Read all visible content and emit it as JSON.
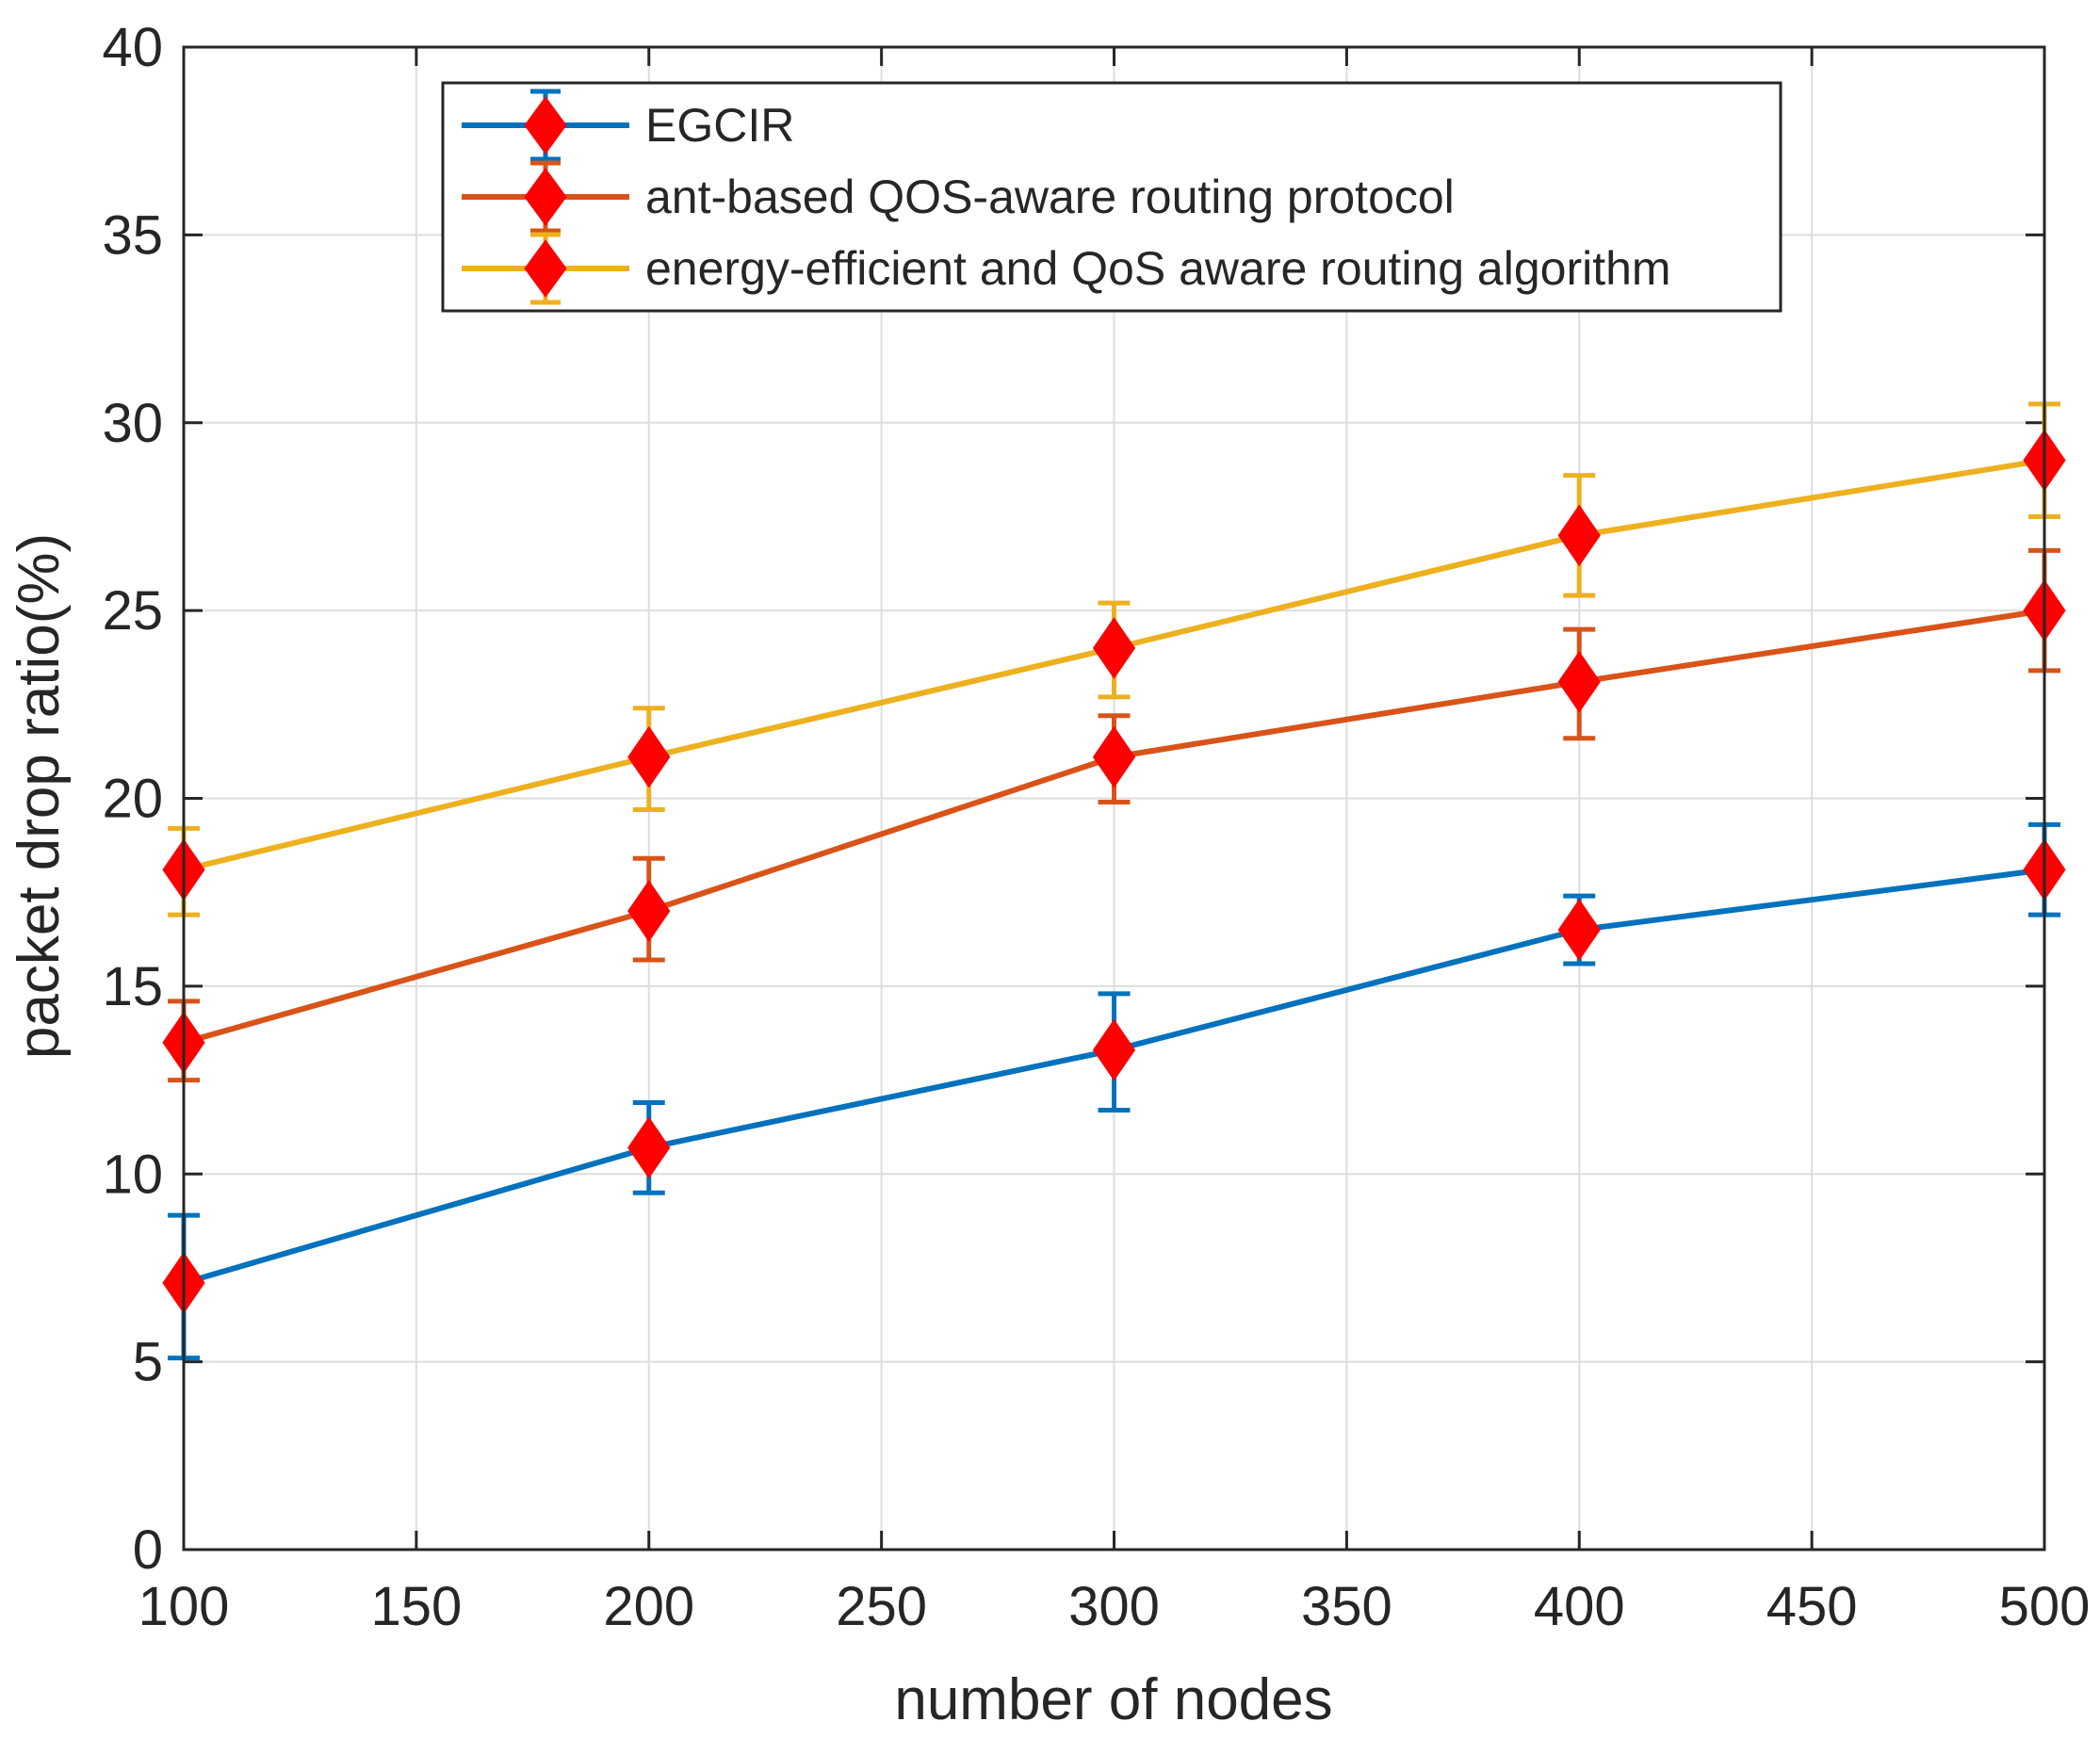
{
  "chart_data": {
    "type": "line",
    "title": "",
    "xlabel": "number of nodes",
    "ylabel": "packet drop ratio(%)",
    "xlim": [
      100,
      500
    ],
    "ylim": [
      0,
      40
    ],
    "xticks": [
      100,
      150,
      200,
      250,
      300,
      350,
      400,
      450,
      500
    ],
    "yticks": [
      0,
      5,
      10,
      15,
      20,
      25,
      30,
      35,
      40
    ],
    "xtick_labels": [
      "100",
      "150",
      "200",
      "250",
      "300",
      "350",
      "400",
      "450",
      "500"
    ],
    "ytick_labels": [
      "0",
      "5",
      "10",
      "15",
      "20",
      "25",
      "30",
      "35",
      "40"
    ],
    "grid": true,
    "legend_position": "top-center",
    "marker": "diamond",
    "marker_color": "#ff0000",
    "x": [
      100,
      200,
      300,
      400,
      500
    ],
    "series": [
      {
        "name": "EGCIR",
        "color": "#0072bd",
        "values": [
          7.1,
          10.7,
          13.3,
          16.5,
          18.1
        ],
        "error_low": [
          5.1,
          9.5,
          11.7,
          15.6,
          16.9
        ],
        "error_high": [
          8.9,
          11.9,
          14.8,
          17.4,
          19.3
        ]
      },
      {
        "name": "ant-based QOS-aware routing protocol",
        "color": "#d95319",
        "values": [
          13.5,
          17.0,
          21.1,
          23.1,
          25.0
        ],
        "error_low": [
          12.5,
          15.7,
          19.9,
          21.6,
          23.4
        ],
        "error_high": [
          14.6,
          18.4,
          22.2,
          24.5,
          26.6
        ]
      },
      {
        "name": "energy-efficient and QoS aware routing algorithm",
        "color": "#edb120",
        "values": [
          18.1,
          21.1,
          24.0,
          27.0,
          29.0
        ],
        "error_low": [
          16.9,
          19.7,
          22.7,
          25.4,
          27.5
        ],
        "error_high": [
          19.2,
          22.4,
          25.2,
          28.6,
          30.5
        ]
      }
    ]
  }
}
